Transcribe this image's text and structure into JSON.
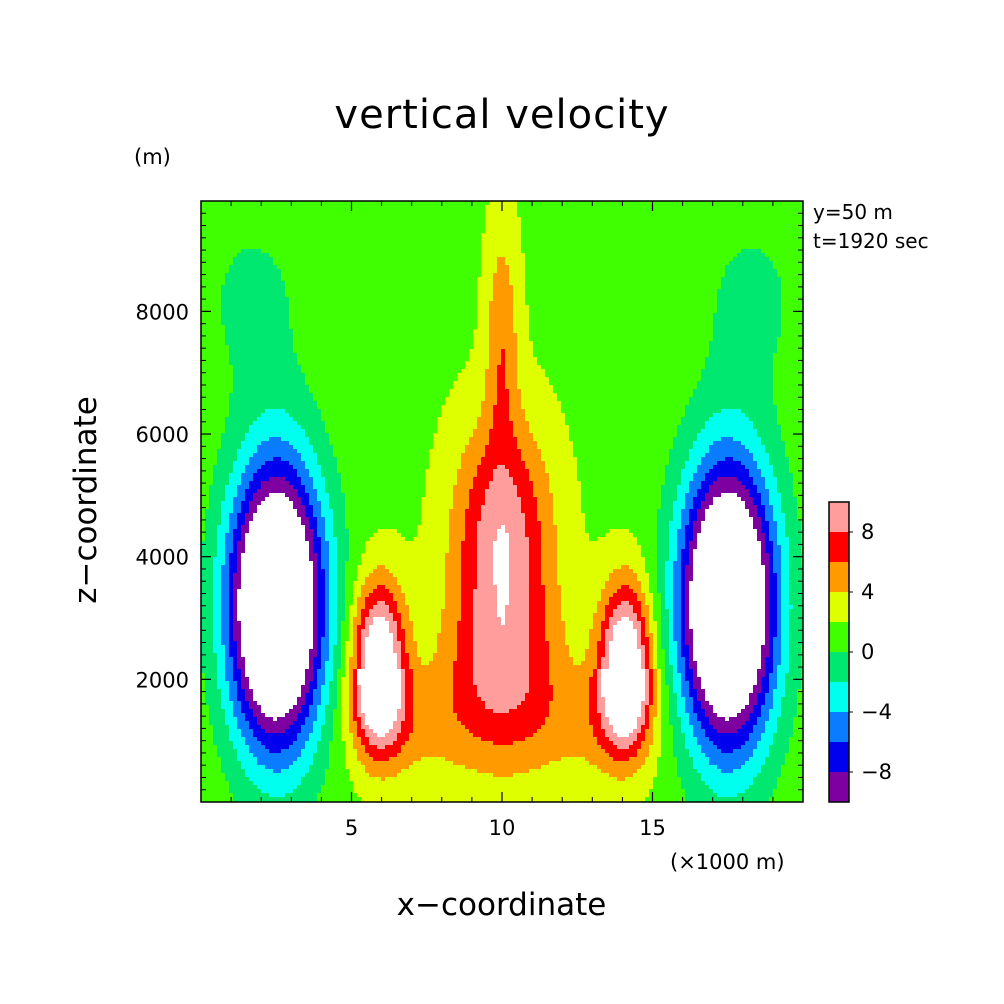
{
  "chart_data": {
    "type": "heatmap",
    "title": "vertical velocity",
    "xlabel": "x−coordinate",
    "ylabel": "z−coordinate",
    "x_unit": "(×1000 m)",
    "z_unit": "(m)",
    "annotations": [
      "y=50 m",
      "t=1920 sec"
    ],
    "xlim": [
      0,
      20
    ],
    "ylim": [
      0,
      9800
    ],
    "x_ticks": [
      5,
      10,
      15
    ],
    "y_ticks": [
      2000,
      4000,
      6000,
      8000
    ],
    "colorbar": {
      "levels": [
        -10,
        -8,
        -6,
        -4,
        -2,
        0,
        2,
        4,
        6,
        8,
        10
      ],
      "tick_labels": [
        "−8",
        "−4",
        "0",
        "4",
        "8"
      ],
      "tick_values": [
        -8,
        -4,
        0,
        4,
        8
      ],
      "colors": [
        "#7f00a0",
        "#0000ee",
        "#0a7cff",
        "#00ffee",
        "#00e870",
        "#40ff00",
        "#ddff00",
        "#ff9a00",
        "#ff0000",
        "#ff9d9d"
      ]
    },
    "field": {
      "description": "symmetric 2D cell: central updraft (x≈10, z≈1500–9800) flanked by updraft lobes near x≈6 and x≈14 (z≈0–3500) and strong downdrafts near x≈2.5 and x≈17.5 (z≈700–6500)",
      "max_gt_10_regions": [
        [
          10,
          5000
        ],
        [
          6,
          2400
        ],
        [
          14,
          2400
        ]
      ],
      "min_lt_minus_10_regions": [
        [
          2.5,
          3200
        ],
        [
          17.5,
          3200
        ]
      ]
    }
  }
}
